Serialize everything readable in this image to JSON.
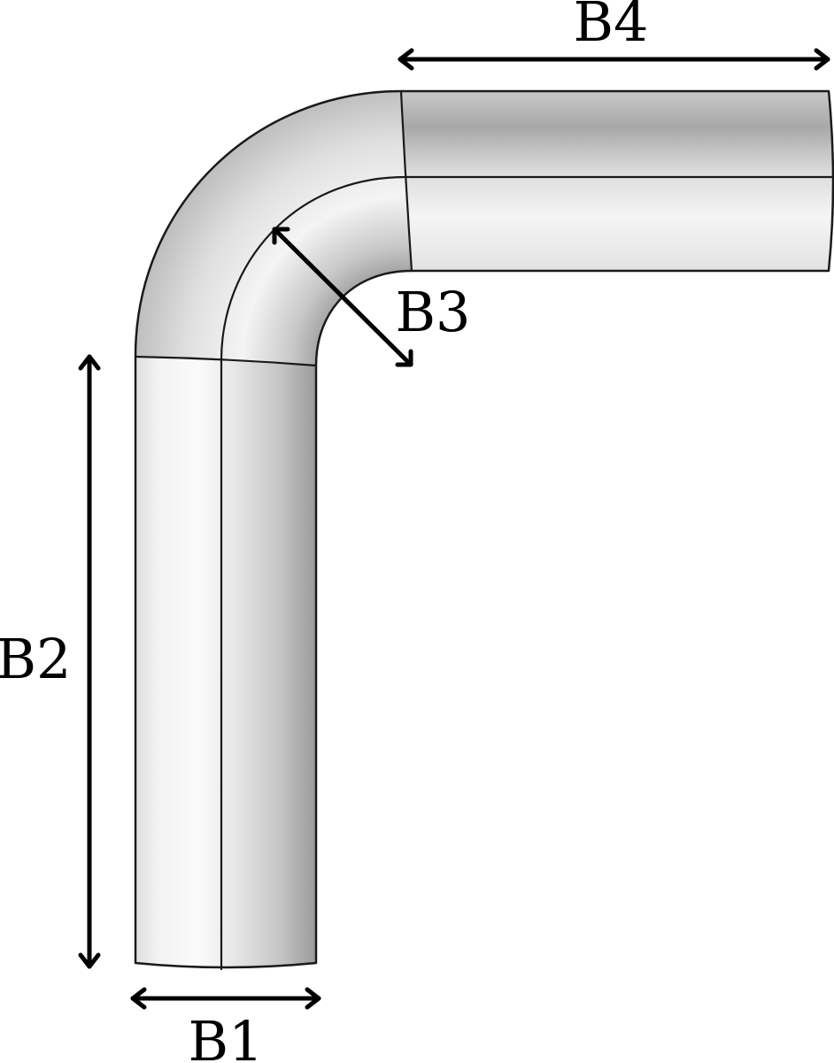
{
  "figure": {
    "description_labels": {
      "b1": "B1",
      "b2": "B2",
      "b3": "B3",
      "b4": "B4"
    },
    "colors": {
      "pipe_light": "#f4f4f4",
      "pipe_mid": "#d8d8d8",
      "pipe_dark": "#9a9a9a",
      "outline": "#1a1a1a",
      "arrow": "#000000",
      "background": "#ffffff"
    }
  }
}
